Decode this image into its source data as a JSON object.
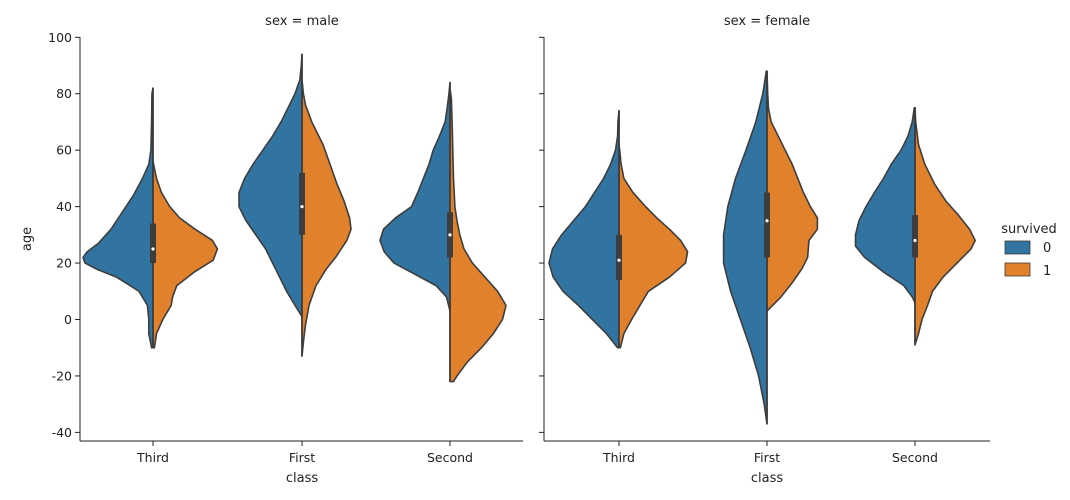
{
  "chart_data": {
    "type": "violin",
    "ylabel": "age",
    "xlabel": "class",
    "yticks": [
      -40,
      -20,
      0,
      20,
      40,
      60,
      80,
      100
    ],
    "ylim": [
      -44,
      102
    ],
    "categories": [
      "Third",
      "First",
      "Second"
    ],
    "legend": {
      "title": "survived",
      "placement": "right",
      "entries": [
        {
          "label": "0",
          "color": "#3274a1"
        },
        {
          "label": "1",
          "color": "#e1812c"
        }
      ]
    },
    "panels": [
      {
        "title": "sex = male",
        "violins": [
          {
            "category": "Third",
            "box": {
              "q1": 20,
              "median": 25,
              "q3": 34
            },
            "survived_0": [
              [
                -10,
                0.02
              ],
              [
                -5,
                0.06
              ],
              [
                0,
                0.06
              ],
              [
                5,
                0.08
              ],
              [
                10,
                0.2
              ],
              [
                15,
                0.52
              ],
              [
                18,
                0.82
              ],
              [
                20,
                0.97
              ],
              [
                22,
                1.0
              ],
              [
                24,
                0.94
              ],
              [
                27,
                0.78
              ],
              [
                32,
                0.6
              ],
              [
                38,
                0.44
              ],
              [
                44,
                0.28
              ],
              [
                50,
                0.15
              ],
              [
                55,
                0.06
              ],
              [
                60,
                0.03
              ],
              [
                70,
                0.02
              ],
              [
                80,
                0.015
              ],
              [
                82,
                0.0
              ]
            ],
            "survived_1": [
              [
                -10,
                0.02
              ],
              [
                -5,
                0.05
              ],
              [
                0,
                0.14
              ],
              [
                5,
                0.26
              ],
              [
                8,
                0.28
              ],
              [
                12,
                0.34
              ],
              [
                17,
                0.6
              ],
              [
                21,
                0.86
              ],
              [
                25,
                0.92
              ],
              [
                28,
                0.85
              ],
              [
                32,
                0.6
              ],
              [
                36,
                0.38
              ],
              [
                40,
                0.24
              ],
              [
                45,
                0.12
              ],
              [
                50,
                0.05
              ],
              [
                56,
                0.0
              ]
            ]
          },
          {
            "category": "First",
            "box": {
              "q1": 30,
              "median": 40,
              "q3": 52
            },
            "survived_0": [
              [
                1,
                0.0
              ],
              [
                5,
                0.1
              ],
              [
                10,
                0.22
              ],
              [
                18,
                0.38
              ],
              [
                25,
                0.52
              ],
              [
                30,
                0.66
              ],
              [
                35,
                0.8
              ],
              [
                40,
                0.9
              ],
              [
                45,
                0.9
              ],
              [
                50,
                0.82
              ],
              [
                55,
                0.7
              ],
              [
                60,
                0.56
              ],
              [
                65,
                0.42
              ],
              [
                70,
                0.3
              ],
              [
                75,
                0.2
              ],
              [
                80,
                0.1
              ],
              [
                85,
                0.03
              ],
              [
                90,
                0.01
              ],
              [
                94,
                0.0
              ]
            ],
            "survived_1": [
              [
                -13,
                0.0
              ],
              [
                -8,
                0.02
              ],
              [
                -2,
                0.05
              ],
              [
                5,
                0.1
              ],
              [
                12,
                0.2
              ],
              [
                18,
                0.35
              ],
              [
                22,
                0.48
              ],
              [
                28,
                0.64
              ],
              [
                32,
                0.7
              ],
              [
                36,
                0.68
              ],
              [
                42,
                0.6
              ],
              [
                48,
                0.5
              ],
              [
                55,
                0.4
              ],
              [
                62,
                0.3
              ],
              [
                70,
                0.14
              ],
              [
                76,
                0.05
              ],
              [
                80,
                0.02
              ],
              [
                85,
                0.0
              ]
            ]
          },
          {
            "category": "Second",
            "box": {
              "q1": 22,
              "median": 30,
              "q3": 38
            },
            "survived_0": [
              [
                3,
                0.0
              ],
              [
                8,
                0.05
              ],
              [
                12,
                0.2
              ],
              [
                16,
                0.5
              ],
              [
                20,
                0.8
              ],
              [
                24,
                0.94
              ],
              [
                28,
                1.0
              ],
              [
                32,
                0.95
              ],
              [
                36,
                0.78
              ],
              [
                40,
                0.55
              ],
              [
                45,
                0.46
              ],
              [
                50,
                0.38
              ],
              [
                55,
                0.3
              ],
              [
                60,
                0.24
              ],
              [
                65,
                0.15
              ],
              [
                70,
                0.07
              ],
              [
                75,
                0.04
              ],
              [
                80,
                0.015
              ],
              [
                84,
                0.0
              ]
            ],
            "survived_1": [
              [
                -22,
                0.05
              ],
              [
                -20,
                0.1
              ],
              [
                -15,
                0.25
              ],
              [
                -10,
                0.45
              ],
              [
                -5,
                0.62
              ],
              [
                0,
                0.75
              ],
              [
                5,
                0.8
              ],
              [
                10,
                0.68
              ],
              [
                15,
                0.5
              ],
              [
                20,
                0.32
              ],
              [
                25,
                0.2
              ],
              [
                30,
                0.14
              ],
              [
                35,
                0.1
              ],
              [
                40,
                0.07
              ],
              [
                50,
                0.05
              ],
              [
                60,
                0.04
              ],
              [
                70,
                0.03
              ],
              [
                78,
                0.02
              ],
              [
                82,
                0.0
              ]
            ]
          }
        ]
      },
      {
        "title": "sex = female",
        "violins": [
          {
            "category": "Third",
            "box": {
              "q1": 14,
              "median": 21,
              "q3": 30
            },
            "survived_0": [
              [
                -10,
                0.02
              ],
              [
                -5,
                0.18
              ],
              [
                0,
                0.38
              ],
              [
                5,
                0.58
              ],
              [
                10,
                0.8
              ],
              [
                15,
                0.94
              ],
              [
                20,
                1.0
              ],
              [
                25,
                0.95
              ],
              [
                30,
                0.82
              ],
              [
                35,
                0.65
              ],
              [
                40,
                0.48
              ],
              [
                45,
                0.35
              ],
              [
                50,
                0.22
              ],
              [
                55,
                0.12
              ],
              [
                60,
                0.05
              ],
              [
                65,
                0.02
              ],
              [
                70,
                0.015
              ],
              [
                74,
                0.0
              ]
            ],
            "survived_1": [
              [
                -10,
                0.02
              ],
              [
                -5,
                0.07
              ],
              [
                0,
                0.18
              ],
              [
                5,
                0.3
              ],
              [
                10,
                0.42
              ],
              [
                15,
                0.72
              ],
              [
                20,
                0.95
              ],
              [
                24,
                0.98
              ],
              [
                28,
                0.88
              ],
              [
                32,
                0.72
              ],
              [
                36,
                0.54
              ],
              [
                40,
                0.38
              ],
              [
                45,
                0.2
              ],
              [
                50,
                0.07
              ],
              [
                55,
                0.03
              ],
              [
                60,
                0.01
              ],
              [
                62,
                0.0
              ]
            ]
          },
          {
            "category": "First",
            "box": {
              "q1": 22,
              "median": 35,
              "q3": 45
            },
            "survived_0": [
              [
                -37,
                0.0
              ],
              [
                -30,
                0.04
              ],
              [
                -20,
                0.12
              ],
              [
                -10,
                0.24
              ],
              [
                0,
                0.38
              ],
              [
                10,
                0.52
              ],
              [
                20,
                0.62
              ],
              [
                30,
                0.62
              ],
              [
                40,
                0.56
              ],
              [
                50,
                0.45
              ],
              [
                60,
                0.3
              ],
              [
                70,
                0.16
              ],
              [
                80,
                0.06
              ],
              [
                88,
                0.01
              ]
            ],
            "survived_1": [
              [
                3,
                0.0
              ],
              [
                8,
                0.2
              ],
              [
                13,
                0.36
              ],
              [
                18,
                0.5
              ],
              [
                22,
                0.58
              ],
              [
                28,
                0.6
              ],
              [
                32,
                0.72
              ],
              [
                36,
                0.72
              ],
              [
                40,
                0.62
              ],
              [
                45,
                0.52
              ],
              [
                50,
                0.44
              ],
              [
                55,
                0.36
              ],
              [
                60,
                0.26
              ],
              [
                65,
                0.16
              ],
              [
                70,
                0.06
              ],
              [
                75,
                0.02
              ],
              [
                80,
                0.01
              ],
              [
                88,
                0.0
              ]
            ]
          },
          {
            "category": "Second",
            "box": {
              "q1": 22,
              "median": 28,
              "q3": 37
            },
            "survived_0": [
              [
                6,
                0.0
              ],
              [
                8,
                0.04
              ],
              [
                12,
                0.16
              ],
              [
                17,
                0.46
              ],
              [
                22,
                0.72
              ],
              [
                26,
                0.85
              ],
              [
                30,
                0.85
              ],
              [
                35,
                0.8
              ],
              [
                40,
                0.7
              ],
              [
                45,
                0.58
              ],
              [
                50,
                0.45
              ],
              [
                55,
                0.34
              ],
              [
                60,
                0.2
              ],
              [
                65,
                0.1
              ],
              [
                70,
                0.04
              ],
              [
                75,
                0.01
              ]
            ],
            "survived_1": [
              [
                -9,
                0.0
              ],
              [
                -5,
                0.05
              ],
              [
                0,
                0.1
              ],
              [
                5,
                0.18
              ],
              [
                10,
                0.25
              ],
              [
                15,
                0.4
              ],
              [
                20,
                0.6
              ],
              [
                25,
                0.8
              ],
              [
                28,
                0.86
              ],
              [
                32,
                0.78
              ],
              [
                37,
                0.62
              ],
              [
                42,
                0.44
              ],
              [
                48,
                0.28
              ],
              [
                55,
                0.14
              ],
              [
                62,
                0.05
              ],
              [
                70,
                0.01
              ],
              [
                75,
                0.0
              ]
            ]
          }
        ]
      }
    ]
  }
}
